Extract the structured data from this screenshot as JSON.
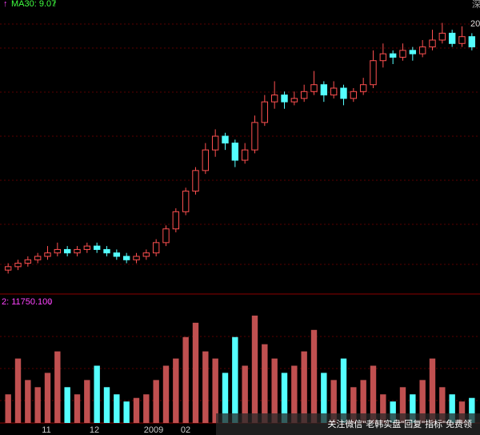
{
  "chart_data": {
    "type": "candlestick",
    "ma_arrow": "↑",
    "ma_label": "MA30: 9.07",
    "ma_arrow2": "↑",
    "vol_label": "2: 11750.100",
    "vol_arrow": "↓",
    "corner_top": "20",
    "corner_mark": "深",
    "x_labels": [
      "11",
      "12",
      "2009",
      "02"
    ],
    "watermark": "关注微信\"老韩实盘\"回复\"指标\"免费领",
    "up_color": "#ff5050",
    "down_color": "#54ffff",
    "ylim": [
      2.8,
      10.5
    ],
    "vol_ylim": [
      0,
      16000
    ],
    "candles": [
      [
        3.1,
        3.3,
        3.0,
        3.2
      ],
      [
        3.2,
        3.4,
        3.1,
        3.3
      ],
      [
        3.3,
        3.5,
        3.2,
        3.4
      ],
      [
        3.4,
        3.6,
        3.3,
        3.5
      ],
      [
        3.5,
        3.8,
        3.4,
        3.6
      ],
      [
        3.6,
        3.9,
        3.5,
        3.7
      ],
      [
        3.7,
        3.8,
        3.5,
        3.6
      ],
      [
        3.6,
        3.8,
        3.5,
        3.7
      ],
      [
        3.7,
        3.9,
        3.6,
        3.8
      ],
      [
        3.8,
        3.9,
        3.6,
        3.7
      ],
      [
        3.7,
        3.8,
        3.5,
        3.6
      ],
      [
        3.6,
        3.7,
        3.4,
        3.5
      ],
      [
        3.5,
        3.6,
        3.3,
        3.4
      ],
      [
        3.4,
        3.6,
        3.3,
        3.5
      ],
      [
        3.5,
        3.7,
        3.4,
        3.6
      ],
      [
        3.6,
        4.0,
        3.5,
        3.9
      ],
      [
        3.9,
        4.4,
        3.8,
        4.3
      ],
      [
        4.3,
        4.9,
        4.2,
        4.8
      ],
      [
        4.8,
        5.5,
        4.7,
        5.4
      ],
      [
        5.4,
        6.1,
        5.3,
        6.0
      ],
      [
        6.0,
        6.8,
        5.9,
        6.6
      ],
      [
        6.6,
        7.2,
        6.4,
        7.0
      ],
      [
        7.0,
        7.1,
        6.6,
        6.8
      ],
      [
        6.8,
        6.9,
        6.1,
        6.3
      ],
      [
        6.3,
        6.8,
        6.2,
        6.6
      ],
      [
        6.6,
        7.6,
        6.5,
        7.4
      ],
      [
        7.4,
        8.2,
        7.3,
        8.0
      ],
      [
        8.0,
        8.6,
        7.8,
        8.2
      ],
      [
        8.2,
        8.3,
        7.8,
        8.0
      ],
      [
        8.0,
        8.3,
        7.9,
        8.1
      ],
      [
        8.1,
        8.5,
        8.0,
        8.3
      ],
      [
        8.3,
        8.9,
        8.2,
        8.5
      ],
      [
        8.5,
        8.6,
        8.0,
        8.2
      ],
      [
        8.2,
        8.6,
        8.1,
        8.4
      ],
      [
        8.4,
        8.5,
        7.9,
        8.1
      ],
      [
        8.1,
        8.4,
        8.0,
        8.3
      ],
      [
        8.3,
        8.7,
        8.2,
        8.5
      ],
      [
        8.5,
        9.5,
        8.4,
        9.2
      ],
      [
        9.2,
        9.7,
        9.0,
        9.4
      ],
      [
        9.4,
        9.5,
        9.1,
        9.3
      ],
      [
        9.3,
        9.7,
        9.2,
        9.5
      ],
      [
        9.5,
        9.6,
        9.2,
        9.4
      ],
      [
        9.4,
        9.8,
        9.3,
        9.6
      ],
      [
        9.6,
        10.1,
        9.5,
        9.8
      ],
      [
        9.8,
        10.3,
        9.7,
        10.0
      ],
      [
        10.0,
        10.1,
        9.6,
        9.7
      ],
      [
        9.7,
        10.2,
        9.6,
        9.9
      ],
      [
        9.9,
        10.0,
        9.5,
        9.6
      ]
    ],
    "volumes": [
      4000,
      9000,
      6000,
      5000,
      7000,
      10000,
      5000,
      4000,
      6000,
      8000,
      5000,
      4000,
      3000,
      3500,
      4000,
      6000,
      8000,
      9000,
      12000,
      14000,
      10000,
      9000,
      7000,
      12000,
      8000,
      15000,
      11000,
      9000,
      7000,
      8000,
      10000,
      13000,
      7000,
      6000,
      9000,
      5000,
      6000,
      8000,
      4000,
      3000,
      5000,
      4000,
      6000,
      9000,
      5000,
      4000,
      3000,
      3500
    ]
  }
}
